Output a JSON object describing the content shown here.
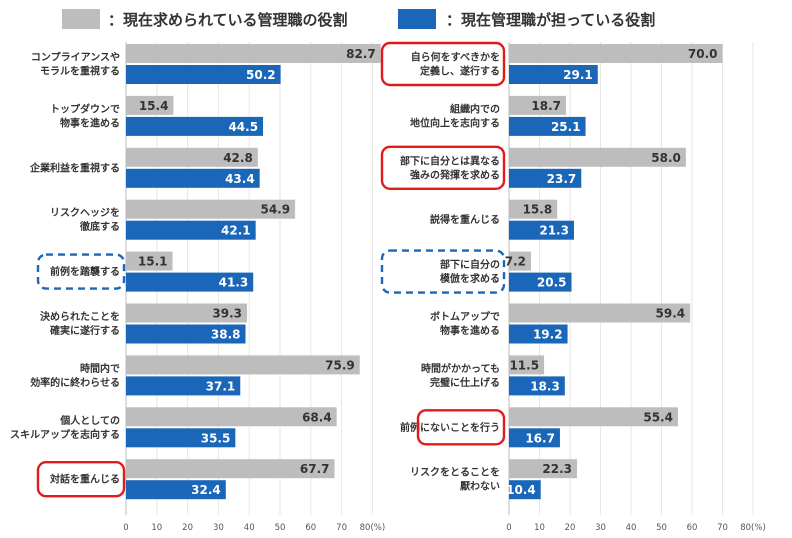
{
  "legend": [
    {
      "label": "：現在求められている管理職の役割",
      "color": "#bdbdbd"
    },
    {
      "label": "：現在管理職が担っている役割",
      "color": "#1a66b8"
    }
  ],
  "colors": {
    "gray": "#bdbdbd",
    "blue": "#1a66b8",
    "red_box": "#e11a1a",
    "blue_box": "#1a66b8"
  },
  "chart_data": [
    {
      "type": "bar",
      "orientation": "horizontal",
      "categories": [
        "コンプライアンスや\nモラルを重視する",
        "トップダウンで\n物事を進める",
        "企業利益を重視する",
        "リスクヘッジを\n徹底する",
        "前例を踏襲する",
        "決められたことを\n確実に遂行する",
        "時間内で\n効率的に終わらせる",
        "個人としての\nスキルアップを志向する",
        "対話を重んじる"
      ],
      "series": [
        {
          "name": "：現在求められている管理職の役割",
          "values": [
            82.7,
            15.4,
            42.8,
            54.9,
            15.1,
            39.3,
            75.9,
            68.4,
            67.7
          ]
        },
        {
          "name": "：現在管理職が担っている役割",
          "values": [
            50.2,
            44.5,
            43.4,
            42.1,
            41.3,
            38.8,
            37.1,
            35.5,
            32.4
          ]
        }
      ],
      "xticks": [
        "0",
        "10",
        "20",
        "30",
        "40",
        "50",
        "60",
        "70",
        "80(%)"
      ],
      "xlim": [
        0,
        80
      ],
      "highlights": [
        {
          "index": 4,
          "style": "blue-dashed"
        },
        {
          "index": 8,
          "style": "red-solid"
        }
      ]
    },
    {
      "type": "bar",
      "orientation": "horizontal",
      "categories": [
        "自ら何をすべきかを\n定義し、遂行する",
        "組織内での\n地位向上を志向する",
        "部下に自分とは異なる\n強みの発揮を求める",
        "説得を重んじる",
        "部下に自分の\n模倣を求める",
        "ボトムアップで\n物事を進める",
        "時間がかかっても\n完璧に仕上げる",
        "前例にないことを行う",
        "リスクをとることを\n厭わない"
      ],
      "series": [
        {
          "name": "：現在求められている管理職の役割",
          "values": [
            70.0,
            18.7,
            58.0,
            15.8,
            7.2,
            59.4,
            11.5,
            55.4,
            22.3
          ]
        },
        {
          "name": "：現在管理職が担っている役割",
          "values": [
            29.1,
            25.1,
            23.7,
            21.3,
            20.5,
            19.2,
            18.3,
            16.7,
            10.4
          ]
        }
      ],
      "xticks": [
        "0",
        "10",
        "20",
        "30",
        "40",
        "50",
        "60",
        "70",
        "80(%)"
      ],
      "xlim": [
        0,
        80
      ],
      "highlights": [
        {
          "index": 0,
          "style": "red-solid"
        },
        {
          "index": 2,
          "style": "red-solid"
        },
        {
          "index": 4,
          "style": "blue-dashed"
        },
        {
          "index": 7,
          "style": "red-solid"
        }
      ]
    }
  ]
}
